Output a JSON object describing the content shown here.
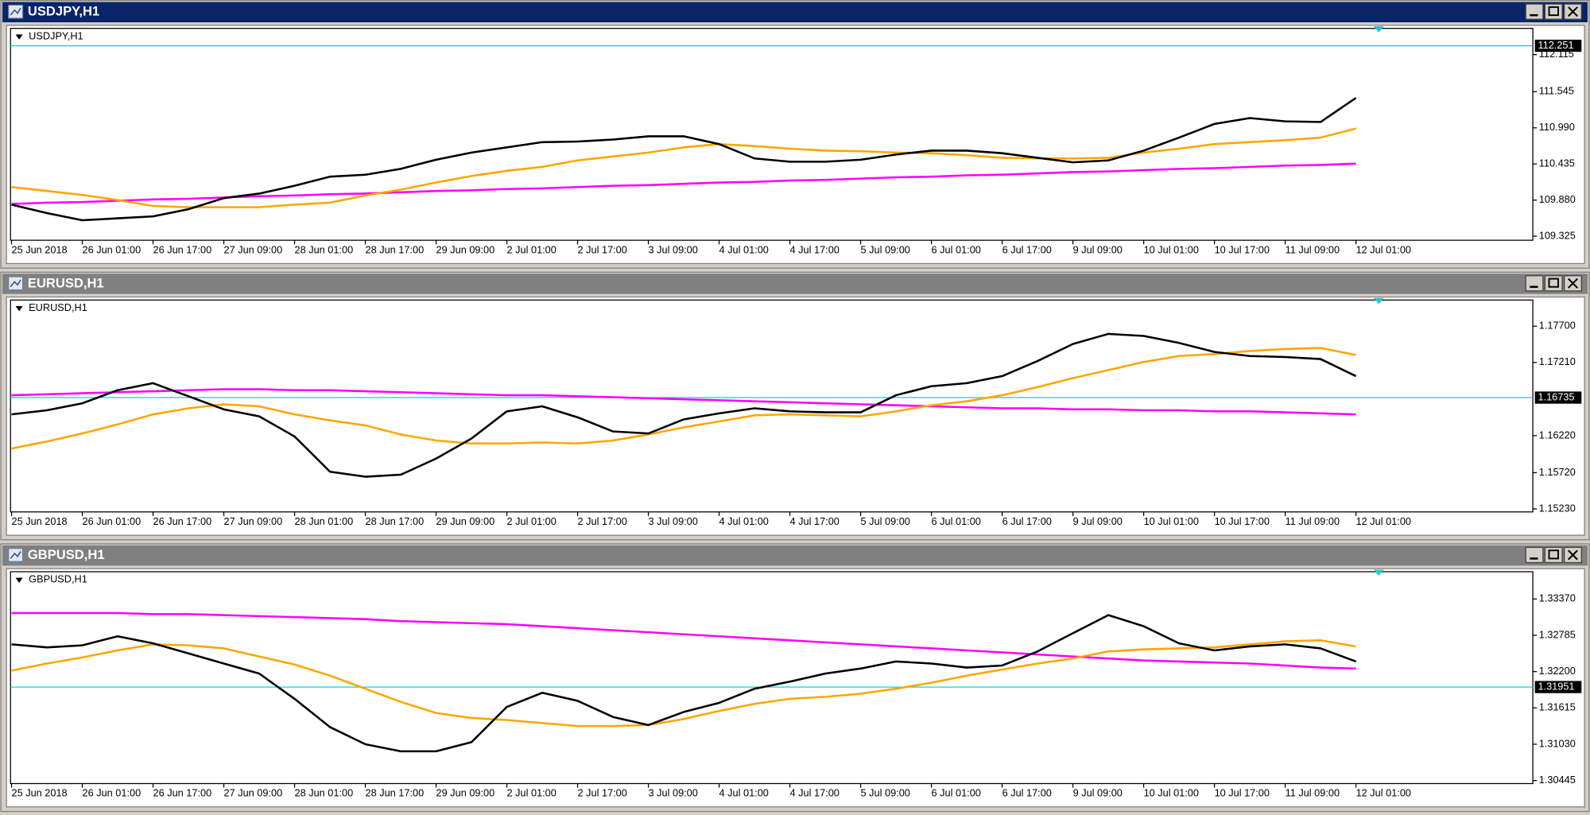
{
  "chart_data": [
    {
      "type": "line",
      "window_title": "USDJPY,H1",
      "title": "USDJPY,H1",
      "active": true,
      "categories": [
        "25 Jun 2018",
        null,
        "26 Jun 01:00",
        null,
        "26 Jun 17:00",
        null,
        "27 Jun 09:00",
        null,
        "28 Jun 01:00",
        null,
        "28 Jun 17:00",
        null,
        "29 Jun 09:00",
        null,
        "2 Jul 01:00",
        null,
        "2 Jul 17:00",
        null,
        "3 Jul 09:00",
        null,
        "4 Jul 01:00",
        null,
        "4 Jul 17:00",
        null,
        "5 Jul 09:00",
        null,
        "6 Jul 01:00",
        null,
        "6 Jul 17:00",
        null,
        "9 Jul 09:00",
        null,
        "10 Jul 01:00",
        null,
        "10 Jul 17:00",
        null,
        "11 Jul 09:00",
        null,
        "12 Jul 01:00"
      ],
      "series": [
        {
          "color": "#ff00ff",
          "values": [
            109.82,
            109.84,
            109.85,
            109.87,
            109.89,
            109.9,
            109.92,
            109.94,
            109.95,
            109.97,
            109.98,
            110.0,
            110.02,
            110.03,
            110.05,
            110.06,
            110.08,
            110.1,
            110.11,
            110.13,
            110.15,
            110.16,
            110.18,
            110.19,
            110.21,
            110.23,
            110.24,
            110.26,
            110.27,
            110.29,
            110.31,
            110.32,
            110.34,
            110.36,
            110.37,
            110.39,
            110.41,
            110.42,
            110.44
          ]
        },
        {
          "color": "#ffa500",
          "values": [
            110.08,
            110.02,
            109.96,
            109.88,
            109.79,
            109.77,
            109.77,
            109.77,
            109.81,
            109.84,
            109.95,
            110.04,
            110.15,
            110.25,
            110.33,
            110.39,
            110.49,
            110.55,
            110.61,
            110.69,
            110.74,
            110.71,
            110.67,
            110.64,
            110.63,
            110.61,
            110.6,
            110.57,
            110.53,
            110.52,
            110.52,
            110.53,
            110.61,
            110.67,
            110.74,
            110.77,
            110.8,
            110.84,
            110.98
          ]
        },
        {
          "color": "#000000",
          "values": [
            109.81,
            109.68,
            109.57,
            109.6,
            109.63,
            109.74,
            109.91,
            109.98,
            110.1,
            110.24,
            110.27,
            110.36,
            110.5,
            110.61,
            110.69,
            110.77,
            110.78,
            110.81,
            110.86,
            110.86,
            110.74,
            110.52,
            110.47,
            110.47,
            110.5,
            110.58,
            110.64,
            110.64,
            110.6,
            110.53,
            110.46,
            110.49,
            110.64,
            110.84,
            111.05,
            111.14,
            111.09,
            111.08,
            111.45
          ]
        }
      ],
      "ylim": [
        109.263,
        112.518
      ],
      "yticks": [
        112.115,
        111.545,
        {
          "value": 110.99,
          "label": "110.990"
        },
        110.435,
        {
          "value": 109.88,
          "label": "109.880"
        },
        109.325
      ],
      "price_line": 112.251,
      "price_line_color": "#00d8d8"
    },
    {
      "type": "line",
      "window_title": "EURUSD,H1",
      "title": "EURUSD,H1",
      "active": false,
      "categories": [
        "25 Jun 2018",
        null,
        "26 Jun 01:00",
        null,
        "26 Jun 17:00",
        null,
        "27 Jun 09:00",
        null,
        "28 Jun 01:00",
        null,
        "28 Jun 17:00",
        null,
        "29 Jun 09:00",
        null,
        "2 Jul 01:00",
        null,
        "2 Jul 17:00",
        null,
        "3 Jul 09:00",
        null,
        "4 Jul 01:00",
        null,
        "4 Jul 17:00",
        null,
        "5 Jul 09:00",
        null,
        "6 Jul 01:00",
        null,
        "6 Jul 17:00",
        null,
        "9 Jul 09:00",
        null,
        "10 Jul 01:00",
        null,
        "10 Jul 17:00",
        null,
        "11 Jul 09:00",
        null,
        "12 Jul 01:00"
      ],
      "series": [
        {
          "color": "#ff00ff",
          "values": [
            1.16767,
            1.1678,
            1.16794,
            1.16808,
            1.16821,
            1.16835,
            1.16848,
            1.16848,
            1.16835,
            1.16835,
            1.16821,
            1.16808,
            1.16794,
            1.1678,
            1.16767,
            1.16767,
            1.16753,
            1.1674,
            1.16726,
            1.16712,
            1.16699,
            1.16685,
            1.16672,
            1.16658,
            1.16644,
            1.16631,
            1.16617,
            1.16604,
            1.1659,
            1.1659,
            1.16576,
            1.16576,
            1.16563,
            1.16563,
            1.16549,
            1.16549,
            1.16536,
            1.16522,
            1.16508
          ]
        },
        {
          "color": "#ffa500",
          "values": [
            1.16046,
            1.16141,
            1.1625,
            1.16372,
            1.16508,
            1.1659,
            1.16644,
            1.16617,
            1.16508,
            1.16427,
            1.16359,
            1.16236,
            1.16155,
            1.16114,
            1.16114,
            1.16128,
            1.16114,
            1.16155,
            1.16236,
            1.16332,
            1.16413,
            1.16495,
            1.16508,
            1.16495,
            1.16481,
            1.16549,
            1.16631,
            1.16685,
            1.16767,
            1.16876,
            1.16998,
            1.17107,
            1.17216,
            1.17297,
            1.17324,
            1.17365,
            1.17392,
            1.17406,
            1.17311
          ]
        },
        {
          "color": "#000000",
          "values": [
            1.16508,
            1.16563,
            1.16658,
            1.16835,
            1.1693,
            1.16753,
            1.16576,
            1.16481,
            1.16209,
            1.15733,
            1.15665,
            1.15692,
            1.1591,
            1.16182,
            1.16549,
            1.16617,
            1.16468,
            1.16277,
            1.1625,
            1.1644,
            1.16522,
            1.1659,
            1.16549,
            1.16536,
            1.16536,
            1.16767,
            1.16889,
            1.1693,
            1.17025,
            1.17229,
            1.1746,
            1.17596,
            1.17569,
            1.17474,
            1.17352,
            1.17297,
            1.17284,
            1.17256,
            1.17025
          ]
        }
      ],
      "ylim": [
        1.15189,
        1.18054
      ],
      "yticks": [
        {
          "value": 1.177,
          "label": "1.17700"
        },
        {
          "value": 1.1721,
          "label": "1.17210"
        },
        {
          "value": 1.1622,
          "label": "1.16220"
        },
        {
          "value": 1.1572,
          "label": "1.15720"
        },
        {
          "value": 1.1523,
          "label": "1.15230"
        }
      ],
      "price_line": 1.16735,
      "price_line_color": "#00d8d8"
    },
    {
      "type": "line",
      "window_title": "GBPUSD,H1",
      "title": "GBPUSD,H1",
      "active": false,
      "categories": [
        "25 Jun 2018",
        null,
        "26 Jun 01:00",
        null,
        "26 Jun 17:00",
        null,
        "27 Jun 09:00",
        null,
        "28 Jun 01:00",
        null,
        "28 Jun 17:00",
        null,
        "29 Jun 09:00",
        null,
        "2 Jul 01:00",
        null,
        "2 Jul 17:00",
        null,
        "3 Jul 09:00",
        null,
        "4 Jul 01:00",
        null,
        "4 Jul 17:00",
        null,
        "5 Jul 09:00",
        null,
        "6 Jul 01:00",
        null,
        "6 Jul 17:00",
        null,
        "9 Jul 09:00",
        null,
        "10 Jul 01:00",
        null,
        "10 Jul 17:00",
        null,
        "11 Jul 09:00",
        null,
        "12 Jul 01:00"
      ],
      "series": [
        {
          "color": "#ff00ff",
          "values": [
            1.33143,
            1.33143,
            1.33143,
            1.33143,
            1.33126,
            1.33126,
            1.3311,
            1.33094,
            1.33078,
            1.33061,
            1.33045,
            1.33013,
            1.32996,
            1.3298,
            1.32964,
            1.32931,
            1.32899,
            1.32866,
            1.32834,
            1.32801,
            1.32769,
            1.32736,
            1.32704,
            1.32671,
            1.32639,
            1.32606,
            1.32574,
            1.32541,
            1.32509,
            1.32476,
            1.32444,
            1.32411,
            1.32379,
            1.32363,
            1.32346,
            1.3233,
            1.32298,
            1.32265,
            1.32249
          ]
        },
        {
          "color": "#ffa500",
          "values": [
            1.32216,
            1.3233,
            1.32428,
            1.32541,
            1.32639,
            1.32623,
            1.32574,
            1.32444,
            1.32314,
            1.32135,
            1.31924,
            1.31713,
            1.31534,
            1.31453,
            1.3142,
            1.31371,
            1.31323,
            1.31323,
            1.31339,
            1.31436,
            1.31566,
            1.3168,
            1.31761,
            1.31794,
            1.31843,
            1.31924,
            1.32021,
            1.32135,
            1.32233,
            1.3233,
            1.32411,
            1.32525,
            1.32558,
            1.32574,
            1.3259,
            1.32639,
            1.32688,
            1.32704,
            1.32606
          ]
        },
        {
          "color": "#000000",
          "values": [
            1.32639,
            1.3259,
            1.32623,
            1.32769,
            1.32655,
            1.32493,
            1.3233,
            1.32168,
            1.31761,
            1.31306,
            1.3103,
            1.30916,
            1.30916,
            1.31063,
            1.31631,
            1.31859,
            1.31729,
            1.31469,
            1.31339,
            1.3155,
            1.31696,
            1.31924,
            1.32038,
            1.32168,
            1.32249,
            1.32363,
            1.3233,
            1.32265,
            1.32298,
            1.32525,
            1.32818,
            1.3311,
            1.32931,
            1.32655,
            1.32541,
            1.32606,
            1.32639,
            1.32574,
            1.32363
          ]
        }
      ],
      "ylim": [
        1.30396,
        1.33809
      ],
      "yticks": [
        {
          "value": 1.3337,
          "label": "1.33370"
        },
        1.32785,
        {
          "value": 1.322,
          "label": "1.32200"
        },
        1.31615,
        {
          "value": 1.3103,
          "label": "1.31030"
        },
        1.30445
      ],
      "price_line": 1.31951,
      "price_line_color": "#00d8d8"
    }
  ]
}
